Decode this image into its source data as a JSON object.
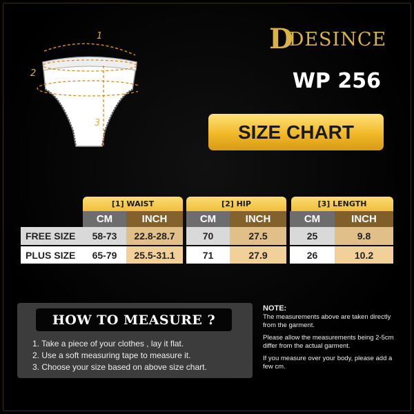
{
  "brand": {
    "logo": "DESINCE",
    "accent": "#d9b24a"
  },
  "model": "WP 256",
  "title": "SIZE CHART",
  "diagram": {
    "labels": [
      "1",
      "2",
      "3"
    ]
  },
  "table": {
    "groups": [
      "[1] WAIST",
      "[2] HIP",
      "[3] LENGTH"
    ],
    "subheaders": [
      "CM",
      "INCH",
      "CM",
      "INCH",
      "CM",
      "INCH"
    ],
    "rows": [
      {
        "label": "FREE SIZE",
        "values": [
          "58-73",
          "22.8-28.7",
          "70",
          "27.5",
          "25",
          "9.8"
        ]
      },
      {
        "label": "PLUS SIZE",
        "values": [
          "65-79",
          "25.5-31.1",
          "71",
          "27.9",
          "26",
          "10.2"
        ]
      }
    ]
  },
  "how": {
    "title": "HOW TO MEASURE ?",
    "steps": [
      "1. Take a piece of your clothes , lay it flat.",
      "2. Use a soft measuring tape to measure it.",
      "3. Choose your size based on above size chart."
    ]
  },
  "note": {
    "title": "NOTE:",
    "paragraphs": [
      "The measurements above are taken directly from the garment.",
      "Please allow the measurements being 2-5cm differ from the actual garment.",
      "If you measure over your body, please add a few cm."
    ]
  }
}
